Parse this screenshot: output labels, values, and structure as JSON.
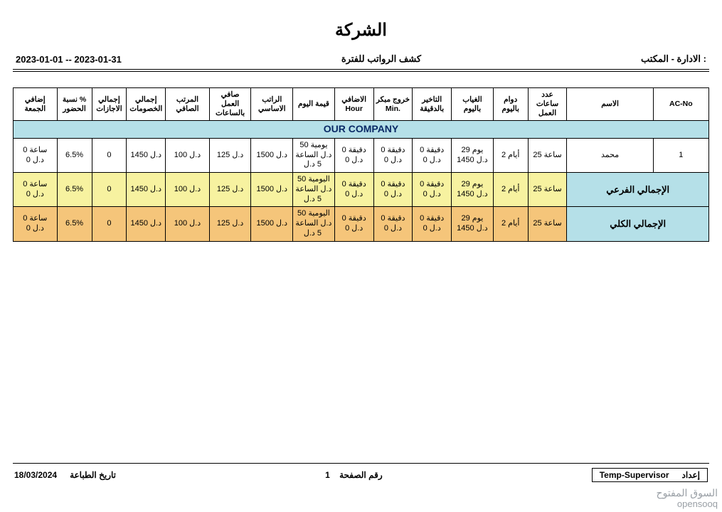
{
  "header": {
    "company_title": "الشركة",
    "subtitle_center": "كشف الرواتب للفترة",
    "right_label": "الادارة - المكتب :",
    "date_range": "2023-01-01 -- 2023-01-31"
  },
  "table": {
    "columns": [
      "إضافي الجمعة",
      "نسبة % الحضور",
      "إجمالي الاجازات",
      "إجمالي الخصومات",
      "المرتب الصافي",
      "صافي العمل بالساعات",
      "الراتب الاساسي",
      "قيمة اليوم",
      "الاضافي Hour",
      "خروج مبكر Min.",
      "التاخير بالدقيقة",
      "الغياب باليوم",
      "دوام باليوم",
      "عدد ساعات العمل",
      "الاسم",
      "AC-No"
    ],
    "col_widths_pct": [
      6.3,
      5,
      5,
      5.6,
      6.3,
      6,
      6,
      6,
      5.6,
      5.6,
      5.6,
      6,
      5,
      5.6,
      12.4,
      8
    ],
    "company_name": "OUR COMPANY",
    "rows": [
      {
        "type": "data",
        "cells": [
          "ساعة 0 د.ل 0",
          "6.5%",
          "0",
          "د.ل 1450",
          "د.ل 100",
          "د.ل 125",
          "د.ل 1500",
          "يومية 50 د.ل الساعة 5 د.ل",
          "دقيقة 0 د.ل 0",
          "دقيقة 0 د.ل 0",
          "دقيقة 0 د.ل 0",
          "يوم 29 د.ل 1450",
          "أيام 2",
          "ساعة 25",
          "محمد",
          "1"
        ]
      },
      {
        "type": "subtotal",
        "label": "الإجمالي الفرعي",
        "cells": [
          "ساعة 0 د.ل 0",
          "6.5%",
          "0",
          "د.ل 1450",
          "د.ل 100",
          "د.ل 125",
          "د.ل 1500",
          "اليومية 50 د.ل الساعة 5 د.ل",
          "دقيقة 0 د.ل 0",
          "دقيقة 0 د.ل 0",
          "دقيقة 0 د.ل 0",
          "يوم 29 د.ل 1450",
          "أيام 2",
          "ساعة 25"
        ]
      },
      {
        "type": "grand",
        "label": "الإجمالي الكلي",
        "cells": [
          "ساعة 0 د.ل 0",
          "6.5%",
          "0",
          "د.ل 1450",
          "د.ل 100",
          "د.ل 125",
          "د.ل 1500",
          "اليومية 50 د.ل الساعة 5 د.ل",
          "دقيقة 0 د.ل 0",
          "دقيقة 0 د.ل 0",
          "دقيقة 0 د.ل 0",
          "يوم 29 د.ل 1450",
          "أيام 2",
          "ساعة 25"
        ]
      }
    ]
  },
  "footer": {
    "page_label": "رقم الصفحة",
    "page_number": "1",
    "print_label": "تاريخ الطباعة",
    "print_date": "18/03/2024",
    "prep_label": "إعداد",
    "prep_value": "Temp-Supervisor"
  },
  "watermark": {
    "ar": "السوق المفتوح",
    "en": "opensooq"
  },
  "colors": {
    "header_band": "#b5e0e8",
    "subtotal_bg": "#f7f2a0",
    "grand_bg": "#f5c57a",
    "label_bg": "#b5e0e8"
  }
}
